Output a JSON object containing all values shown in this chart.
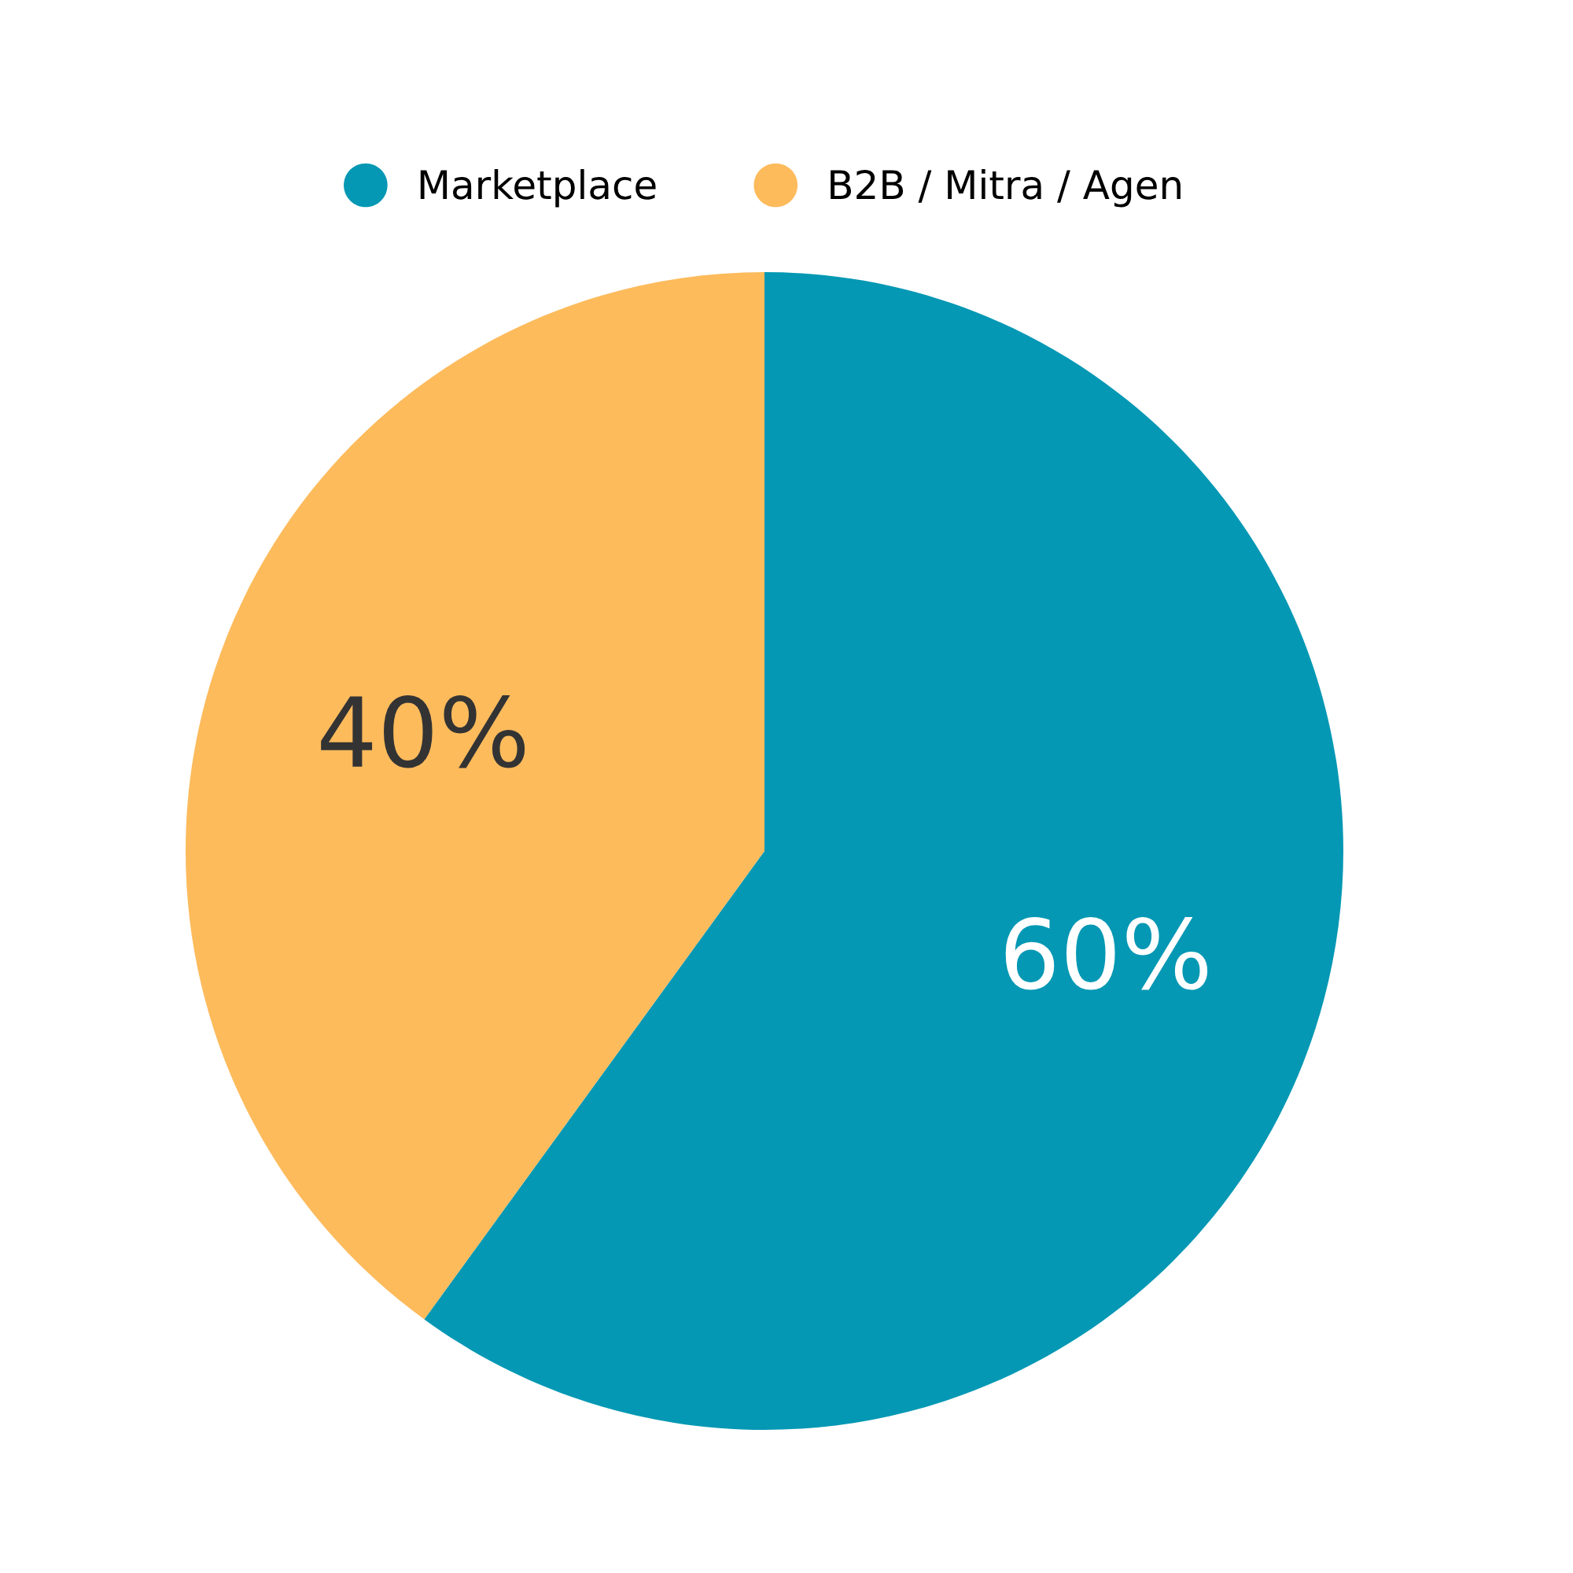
{
  "chart_data": {
    "type": "pie",
    "categories": [
      "Marketplace",
      "B2B / Mitra / Agen"
    ],
    "values": [
      60,
      40
    ],
    "colors": [
      "#0598b4",
      "#fdbb5c"
    ],
    "value_labels": [
      "60%",
      "40%"
    ],
    "legend": "top"
  }
}
